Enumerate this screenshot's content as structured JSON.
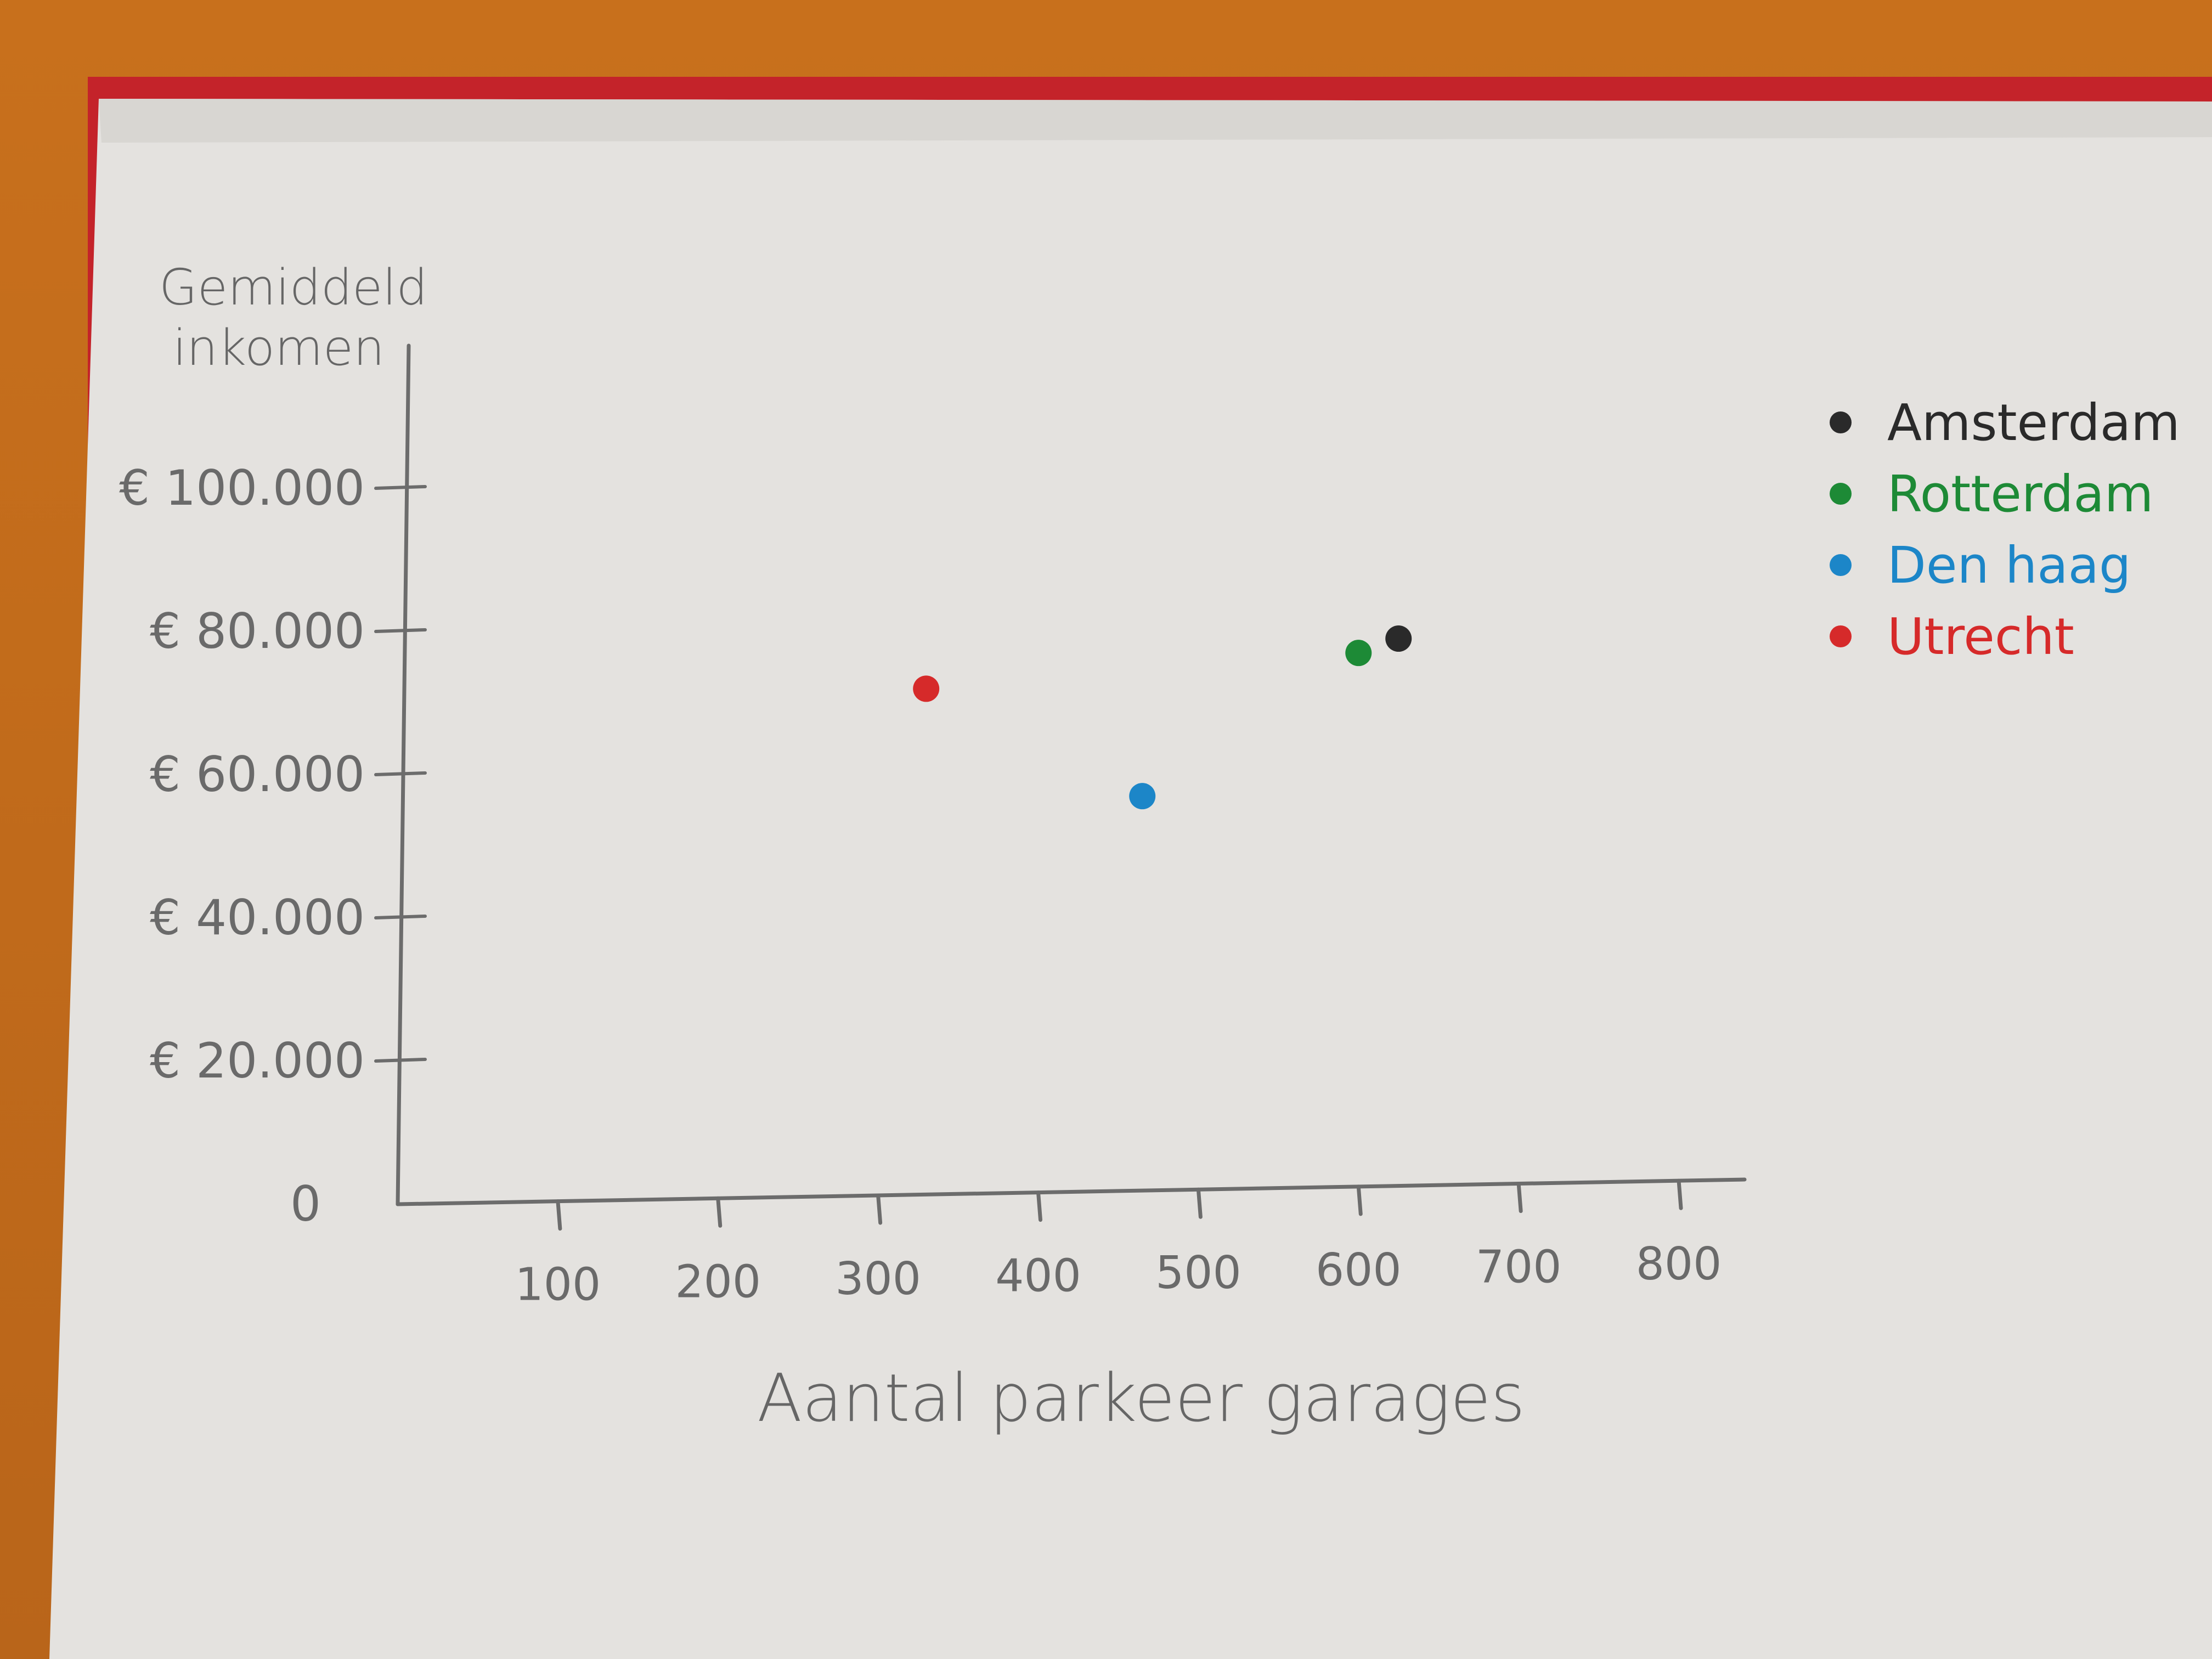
{
  "chart_data": {
    "type": "scatter",
    "title": "",
    "ylabel_line1": "Gemiddeld",
    "ylabel_line2": "inkomen",
    "xlabel": "Aantal parkeer garages",
    "xlim": [
      0,
      800
    ],
    "ylim": [
      0,
      100000
    ],
    "x_ticks": [
      100,
      200,
      300,
      400,
      500,
      600,
      700,
      800
    ],
    "x_tick_labels": [
      "100",
      "200",
      "300",
      "400",
      "500",
      "600",
      "700",
      "800"
    ],
    "y_ticks": [
      0,
      20000,
      40000,
      60000,
      80000,
      100000
    ],
    "y_tick_labels": [
      "0",
      "€ 20.000",
      "€ 40.000",
      "€ 60.000",
      "€ 80.000",
      "€ 100.000"
    ],
    "grid": false,
    "legend_position": "right",
    "series": [
      {
        "name": "Amsterdam",
        "color": "#2a2a2a",
        "points": [
          {
            "x": 625,
            "y": 79000
          }
        ]
      },
      {
        "name": "Rotterdam",
        "color": "#1d8a36",
        "points": [
          {
            "x": 600,
            "y": 77000
          }
        ]
      },
      {
        "name": "Den haag",
        "color": "#1c86c8",
        "points": [
          {
            "x": 465,
            "y": 57000
          }
        ]
      },
      {
        "name": "Utrecht",
        "color": "#d62a2a",
        "points": [
          {
            "x": 330,
            "y": 72000
          }
        ]
      }
    ]
  }
}
